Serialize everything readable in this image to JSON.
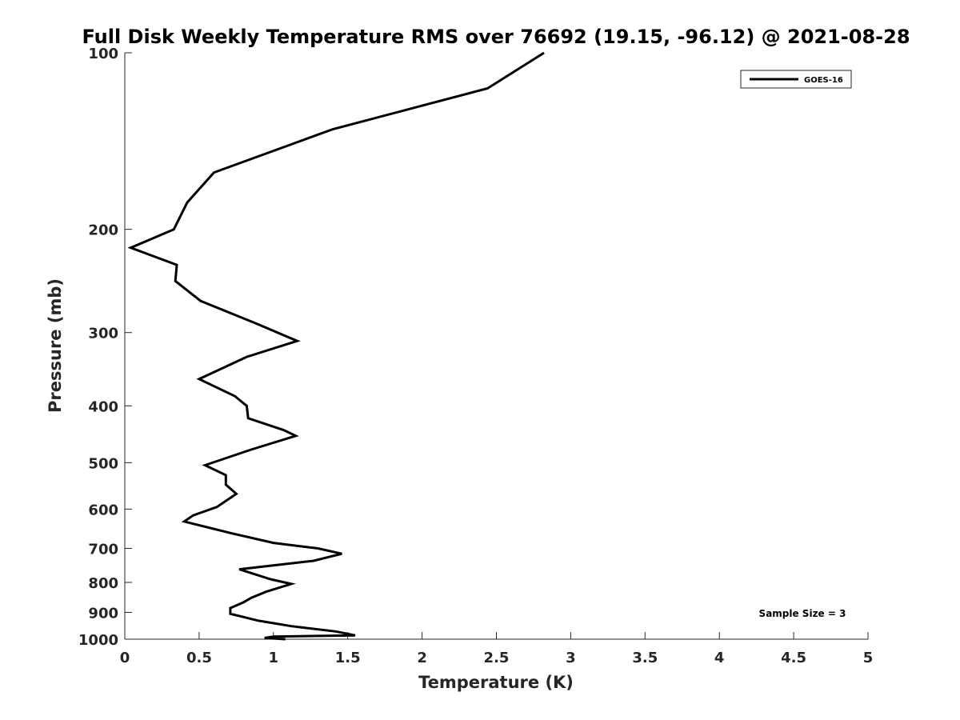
{
  "chart_data": {
    "type": "line",
    "title": "Full Disk Weekly Temperature RMS over 76692 (19.15, -96.12) @ 2021-08-28",
    "xlabel": "Temperature (K)",
    "ylabel": "Pressure (mb)",
    "xlim": [
      0,
      5
    ],
    "ylim": [
      1000,
      100
    ],
    "yscale": "log",
    "y_reversed": true,
    "grid": false,
    "legend_position": "top-right",
    "x_ticks": [
      "0",
      "0.5",
      "1",
      "1.5",
      "2",
      "2.5",
      "3",
      "3.5",
      "4",
      "4.5",
      "5"
    ],
    "y_ticks": [
      "100",
      "200",
      "300",
      "400",
      "500",
      "600",
      "700",
      "800",
      "900",
      "1000"
    ],
    "annotation": "Sample Size = 3",
    "series": [
      {
        "name": "GOES-16",
        "color": "#000000",
        "points": [
          [
            2.82,
            100
          ],
          [
            2.44,
            115
          ],
          [
            1.4,
            135
          ],
          [
            0.6,
            160
          ],
          [
            0.42,
            180
          ],
          [
            0.33,
            200
          ],
          [
            0.04,
            215
          ],
          [
            0.35,
            230
          ],
          [
            0.34,
            245
          ],
          [
            0.51,
            265
          ],
          [
            0.89,
            290
          ],
          [
            1.16,
            310
          ],
          [
            0.82,
            330
          ],
          [
            0.5,
            360
          ],
          [
            0.74,
            385
          ],
          [
            0.82,
            400
          ],
          [
            0.83,
            420
          ],
          [
            1.07,
            440
          ],
          [
            1.15,
            450
          ],
          [
            0.85,
            475
          ],
          [
            0.54,
            505
          ],
          [
            0.68,
            525
          ],
          [
            0.68,
            545
          ],
          [
            0.75,
            565
          ],
          [
            0.62,
            595
          ],
          [
            0.46,
            615
          ],
          [
            0.4,
            630
          ],
          [
            0.72,
            660
          ],
          [
            1.0,
            685
          ],
          [
            1.3,
            700
          ],
          [
            1.46,
            715
          ],
          [
            1.27,
            735
          ],
          [
            0.77,
            760
          ],
          [
            0.98,
            790
          ],
          [
            1.12,
            805
          ],
          [
            0.95,
            830
          ],
          [
            0.85,
            850
          ],
          [
            0.8,
            865
          ],
          [
            0.71,
            885
          ],
          [
            0.71,
            905
          ],
          [
            0.9,
            930
          ],
          [
            1.12,
            950
          ],
          [
            1.42,
            970
          ],
          [
            1.55,
            985
          ],
          [
            1.0,
            990
          ],
          [
            0.94,
            995
          ],
          [
            1.08,
            1000
          ]
        ]
      }
    ]
  }
}
